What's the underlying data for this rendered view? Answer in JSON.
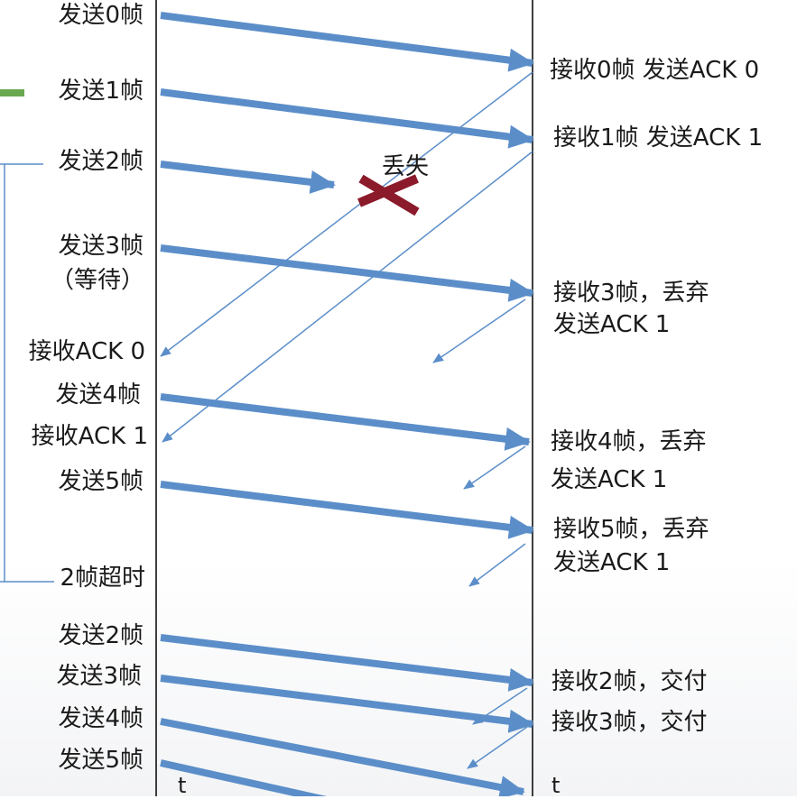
{
  "colors": {
    "arrow": "#5b8ec9",
    "lost_mark": "#8b1a2b",
    "accent": "#6aa84f",
    "line": "#000000"
  },
  "sender": {
    "events": [
      "发送0帧",
      "发送1帧",
      "发送2帧",
      "发送3帧",
      "（等待）",
      "接收ACK 0",
      "发送4帧",
      "接收ACK 1",
      "发送5帧",
      "2帧超时",
      "发送2帧",
      "发送3帧",
      "发送4帧",
      "发送5帧"
    ]
  },
  "receiver": {
    "events": [
      "接收0帧 发送ACK 0",
      "接收1帧 发送ACK 1",
      "接收3帧，丢弃",
      "发送ACK 1",
      "接收4帧，丢弃",
      "发送ACK 1",
      "接收5帧，丢弃",
      "发送ACK 1",
      "接收2帧，交付",
      "接收3帧，交付"
    ]
  },
  "lost_label": "丢失",
  "time_axis": {
    "left": "t",
    "right": "t"
  }
}
